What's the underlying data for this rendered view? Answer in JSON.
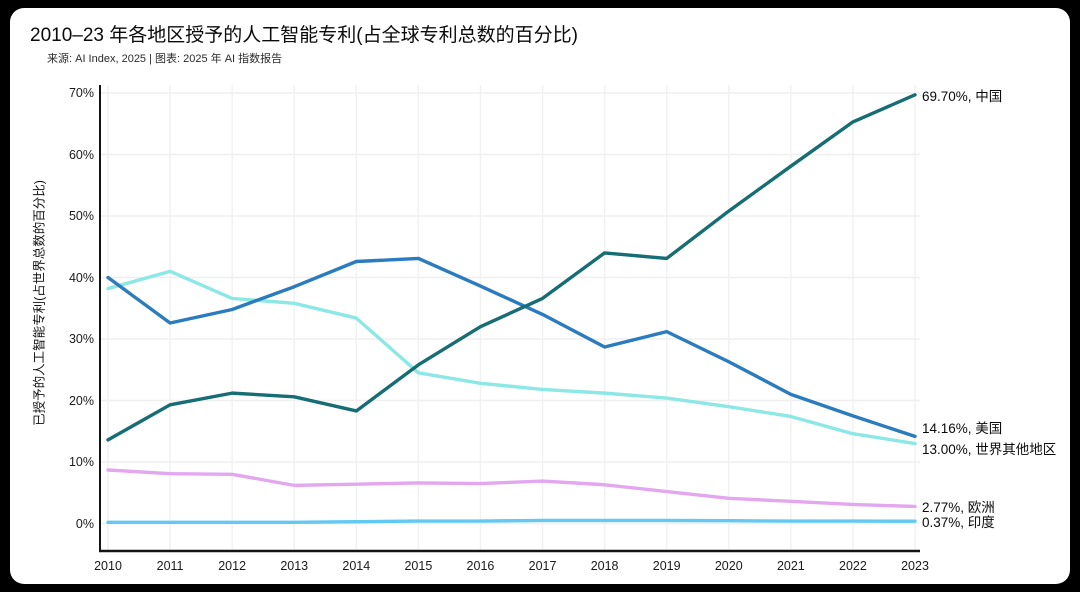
{
  "page": {
    "title": "2010–23 年各地区授予的人工智能专利(占全球专利总数的百分比)",
    "source_line": "来源: AI Index, 2025 | 图表: 2025 年 AI 指数报告"
  },
  "chart_data": {
    "type": "line",
    "title": "2010–23 年各地区授予的人工智能专利(占全球专利总数的百分比)",
    "source": "来源: AI Index, 2025 | 图表: 2025 年 AI 指数报告",
    "xlabel": "",
    "ylabel": "已授予的人工智能专利(占世界总数的百分比)",
    "x": [
      "2010",
      "2011",
      "2012",
      "2013",
      "2014",
      "2015",
      "2016",
      "2017",
      "2018",
      "2019",
      "2020",
      "2021",
      "2022",
      "2023"
    ],
    "y_ticks": [
      "0%",
      "10%",
      "20%",
      "30%",
      "40%",
      "50%",
      "60%",
      "70%"
    ],
    "ylim": [
      0,
      70
    ],
    "grid": true,
    "legend_position": "right-end-labels",
    "series": [
      {
        "name": "印度",
        "color": "#63c8f2",
        "values": [
          0.2,
          0.2,
          0.2,
          0.2,
          0.3,
          0.4,
          0.4,
          0.5,
          0.5,
          0.5,
          0.45,
          0.4,
          0.4,
          0.37
        ],
        "end_label": "0.37%, 印度",
        "label_dy": 0
      },
      {
        "name": "欧洲",
        "color": "#e3a7f0",
        "values": [
          8.7,
          8.1,
          8.0,
          6.2,
          6.4,
          6.6,
          6.5,
          6.9,
          6.3,
          5.2,
          4.1,
          3.6,
          3.1,
          2.77
        ],
        "end_label": "2.77%, 欧洲",
        "label_dy": 0
      },
      {
        "name": "世界其他地区",
        "color": "#8ce8e4",
        "values": [
          38.2,
          41.0,
          36.6,
          35.8,
          33.4,
          24.5,
          22.8,
          21.8,
          21.2,
          20.4,
          19.0,
          17.4,
          14.6,
          13.0
        ],
        "end_label": "13.00%, 世界其他地区",
        "label_dy": 4
      },
      {
        "name": "美国",
        "color": "#2b7bbf",
        "values": [
          40.0,
          32.6,
          34.8,
          38.5,
          42.6,
          43.1,
          38.6,
          34.0,
          28.7,
          31.2,
          26.3,
          21.0,
          17.5,
          14.16
        ],
        "end_label": "14.16%, 美国",
        "label_dy": -9
      },
      {
        "name": "中国",
        "color": "#166d74",
        "values": [
          13.6,
          19.3,
          21.2,
          20.6,
          18.3,
          25.8,
          32.0,
          36.6,
          44.0,
          43.1,
          50.8,
          58.1,
          65.3,
          69.7
        ],
        "end_label": "69.70%, 中国",
        "label_dy": 0
      }
    ]
  }
}
